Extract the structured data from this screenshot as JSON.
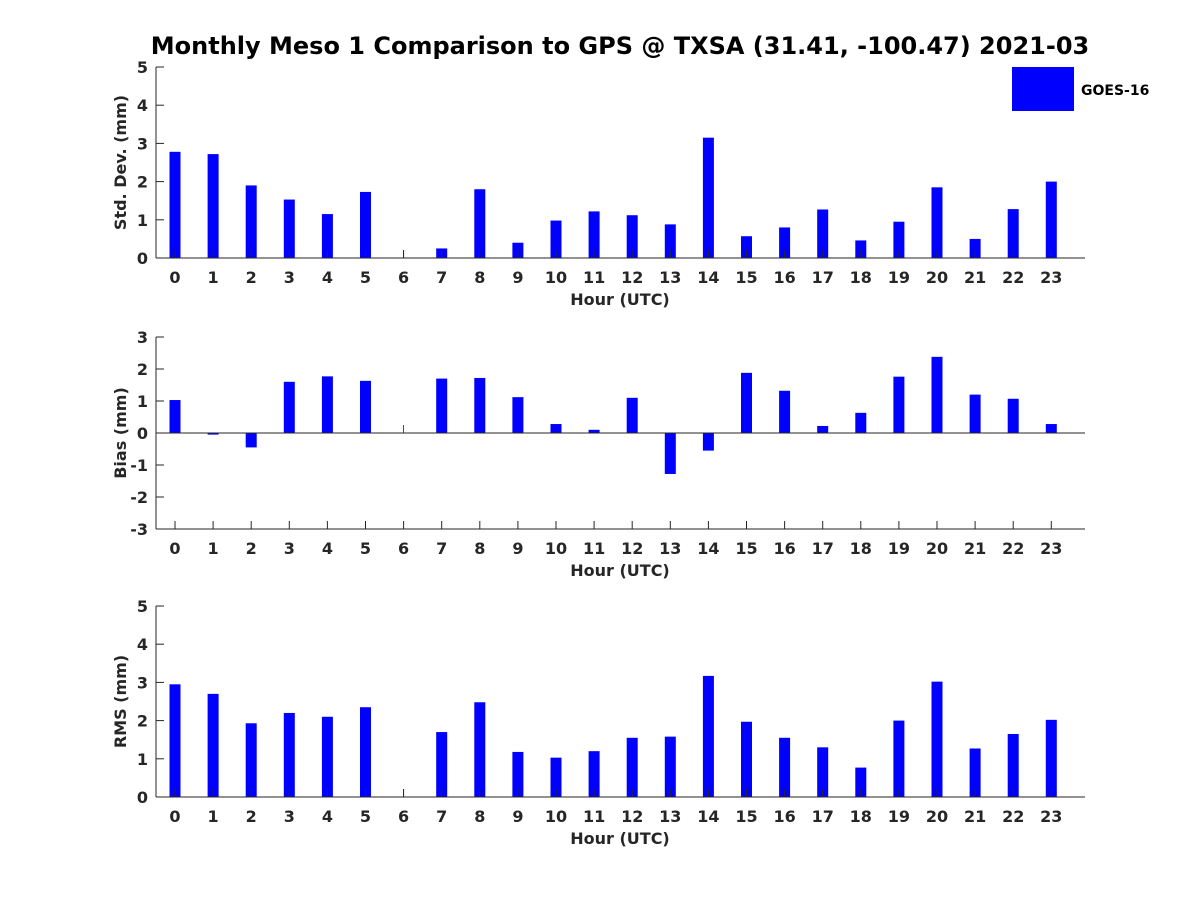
{
  "chart_data": {
    "title": "Monthly Meso 1 Comparison to GPS @ TXSA (31.41, -100.47) 2021-03",
    "type": "bar",
    "legend": {
      "label": "GOES-16",
      "color": "#0000ff",
      "placement": "top-right"
    },
    "categories": [
      "0",
      "1",
      "2",
      "3",
      "4",
      "5",
      "6",
      "7",
      "8",
      "9",
      "10",
      "11",
      "12",
      "13",
      "14",
      "15",
      "16",
      "17",
      "18",
      "19",
      "20",
      "21",
      "22",
      "23"
    ],
    "panels": [
      {
        "type": "bar",
        "xlabel": "Hour (UTC)",
        "ylabel": "Std. Dev. (mm)",
        "ylim": [
          0,
          5
        ],
        "yticks": [
          0,
          1,
          2,
          3,
          4,
          5
        ],
        "values": [
          2.78,
          2.72,
          1.9,
          1.53,
          1.15,
          1.73,
          null,
          0.25,
          1.8,
          0.4,
          0.98,
          1.22,
          1.12,
          0.88,
          3.15,
          0.57,
          0.8,
          1.27,
          0.46,
          0.95,
          1.85,
          0.5,
          1.28,
          2.0
        ]
      },
      {
        "type": "bar",
        "xlabel": "Hour (UTC)",
        "ylabel": "Bias (mm)",
        "ylim": [
          -3,
          3
        ],
        "yticks": [
          -3,
          -2,
          -1,
          0,
          1,
          2,
          3
        ],
        "values": [
          1.03,
          -0.05,
          -0.45,
          1.6,
          1.77,
          1.63,
          null,
          1.7,
          1.72,
          1.12,
          0.28,
          0.1,
          1.1,
          -1.28,
          -0.55,
          1.88,
          1.32,
          0.22,
          0.63,
          1.76,
          2.38,
          1.2,
          1.07,
          0.28
        ]
      },
      {
        "type": "bar",
        "xlabel": "Hour (UTC)",
        "ylabel": "RMS (mm)",
        "ylim": [
          0,
          5
        ],
        "yticks": [
          0,
          1,
          2,
          3,
          4,
          5
        ],
        "values": [
          2.95,
          2.7,
          1.93,
          2.2,
          2.1,
          2.35,
          null,
          1.7,
          2.48,
          1.18,
          1.03,
          1.2,
          1.55,
          1.58,
          3.17,
          1.97,
          1.55,
          1.3,
          0.77,
          2.0,
          3.02,
          1.27,
          1.65,
          2.02
        ]
      }
    ]
  }
}
